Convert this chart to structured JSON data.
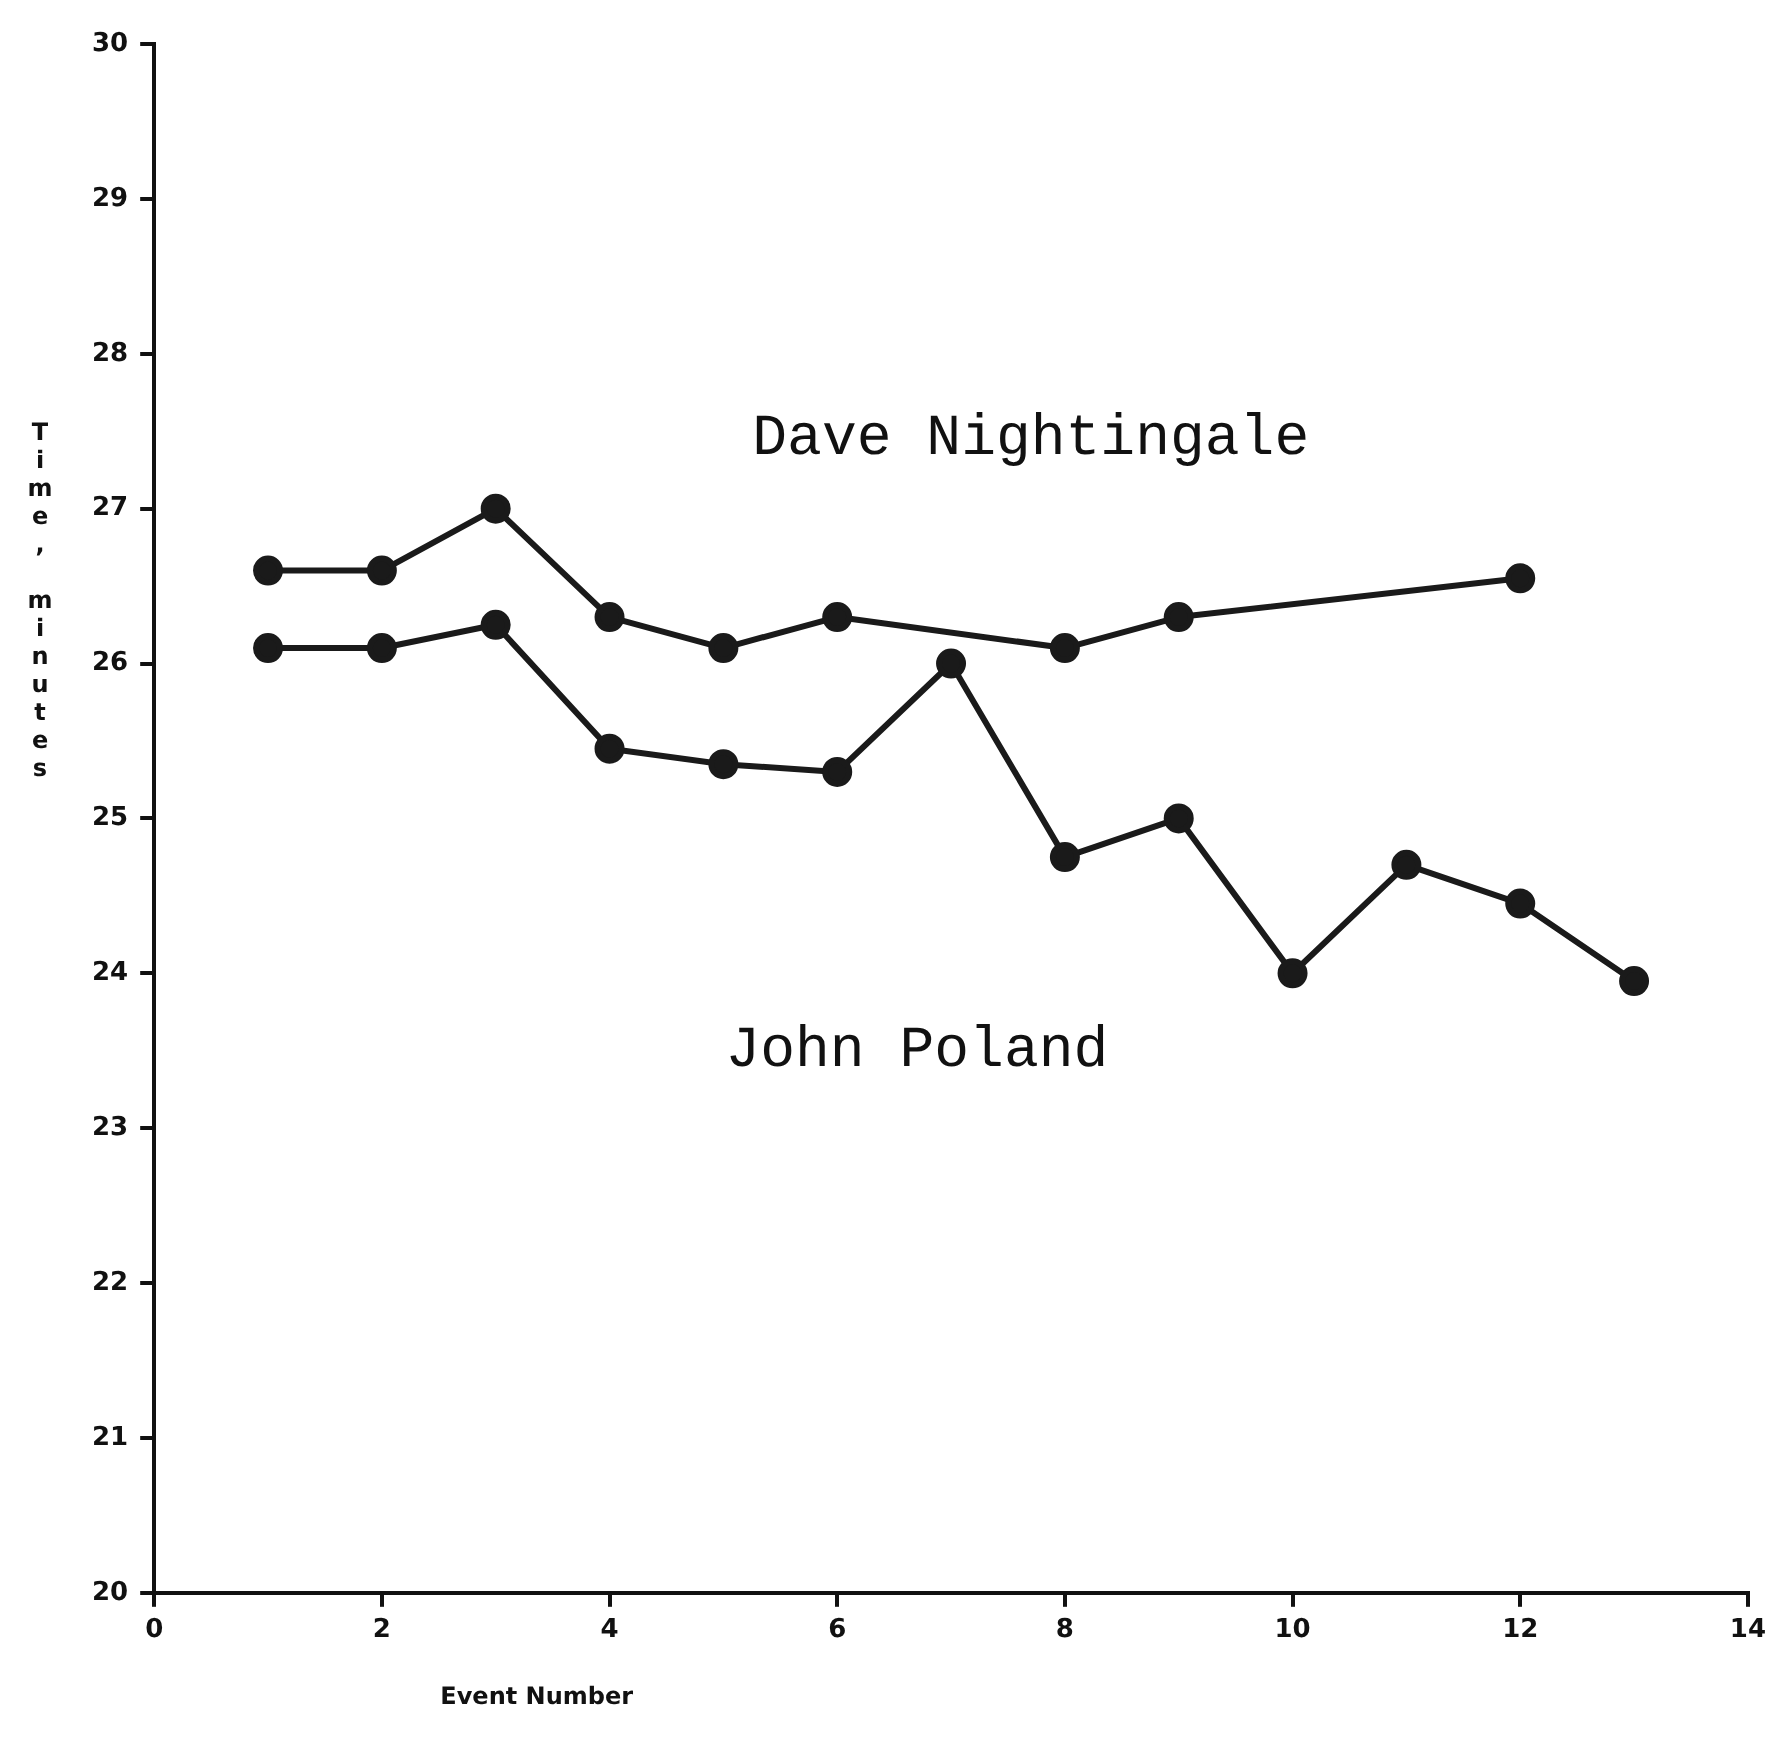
{
  "chart_data": {
    "type": "line",
    "xlabel": "Event Number",
    "ylabel": "Time, minutes",
    "xlim": [
      0,
      14
    ],
    "xticks": [
      0,
      2,
      4,
      6,
      8,
      10,
      12,
      14
    ],
    "ylim": [
      20,
      30
    ],
    "yticks": [
      20,
      21,
      22,
      23,
      24,
      25,
      26,
      27,
      28,
      29,
      30
    ],
    "grid": false,
    "legend": false,
    "marker": "circle",
    "line_style": "solid",
    "series": [
      {
        "name": "Dave Nightingale",
        "color": "#1a1a1a",
        "x": [
          1,
          2,
          3,
          4,
          5,
          6,
          8,
          9,
          12
        ],
        "values": [
          26.6,
          26.6,
          27.0,
          26.3,
          26.1,
          26.3,
          26.1,
          26.3,
          26.55
        ]
      },
      {
        "name": "John Poland",
        "color": "#1a1a1a",
        "x": [
          1,
          2,
          3,
          4,
          5,
          6,
          7,
          8,
          9,
          10,
          11,
          12,
          13
        ],
        "values": [
          26.1,
          26.1,
          26.25,
          25.45,
          25.35,
          25.3,
          26.0,
          24.75,
          25.0,
          24.0,
          24.7,
          24.45,
          23.95
        ]
      }
    ]
  }
}
